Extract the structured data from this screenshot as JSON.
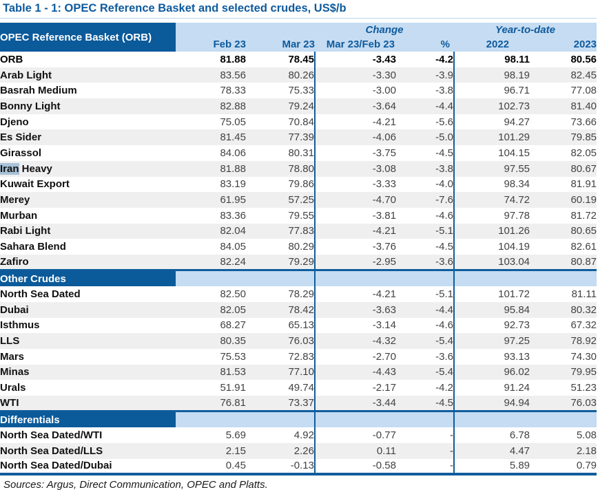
{
  "title": "Table 1 - 1: OPEC Reference Basket and selected crudes, US$/b",
  "footer": "Sources:  Argus, Direct Communication, OPEC and Platts.",
  "colors": {
    "dark_blue": "#0B5A9A",
    "light_blue": "#C5DCF2",
    "line_blue": "#0F5C9C",
    "band_gray": "#EFEFEF",
    "selection_blue": "#A8C2D8",
    "title_blue": "#0E5A9D"
  },
  "header": {
    "corner": "OPEC Reference Basket (ORB)",
    "groups": {
      "change": "Change",
      "ytd": "Year-to-date"
    },
    "columns": [
      "Feb 23",
      "Mar 23",
      "Mar 23/Feb 23",
      "%",
      "2022",
      "2023"
    ]
  },
  "table": {
    "sections": [
      {
        "header": null,
        "rows": [
          {
            "label": "ORB",
            "bold": true,
            "values": [
              "81.88",
              "78.45",
              "-3.43",
              "-4.2",
              "98.11",
              "80.56"
            ]
          },
          {
            "label": "Arab Light",
            "values": [
              "83.56",
              "80.26",
              "-3.30",
              "-3.9",
              "98.19",
              "82.45"
            ]
          },
          {
            "label": "Basrah Medium",
            "values": [
              "78.33",
              "75.33",
              "-3.00",
              "-3.8",
              "96.71",
              "77.08"
            ]
          },
          {
            "label": "Bonny Light",
            "values": [
              "82.88",
              "79.24",
              "-3.64",
              "-4.4",
              "102.73",
              "81.40"
            ]
          },
          {
            "label": "Djeno",
            "values": [
              "75.05",
              "70.84",
              "-4.21",
              "-5.6",
              "94.27",
              "73.66"
            ]
          },
          {
            "label": "Es Sider",
            "values": [
              "81.45",
              "77.39",
              "-4.06",
              "-5.0",
              "101.29",
              "79.85"
            ]
          },
          {
            "label": "Girassol",
            "values": [
              "84.06",
              "80.31",
              "-3.75",
              "-4.5",
              "104.15",
              "82.05"
            ]
          },
          {
            "label": "Iran Heavy",
            "highlight": "Iran",
            "values": [
              "81.88",
              "78.80",
              "-3.08",
              "-3.8",
              "97.55",
              "80.67"
            ]
          },
          {
            "label": "Kuwait Export",
            "values": [
              "83.19",
              "79.86",
              "-3.33",
              "-4.0",
              "98.34",
              "81.91"
            ]
          },
          {
            "label": "Merey",
            "values": [
              "61.95",
              "57.25",
              "-4.70",
              "-7.6",
              "74.72",
              "60.19"
            ]
          },
          {
            "label": "Murban",
            "values": [
              "83.36",
              "79.55",
              "-3.81",
              "-4.6",
              "97.78",
              "81.72"
            ]
          },
          {
            "label": "Rabi Light",
            "values": [
              "82.04",
              "77.83",
              "-4.21",
              "-5.1",
              "101.26",
              "80.65"
            ]
          },
          {
            "label": "Sahara Blend",
            "values": [
              "84.05",
              "80.29",
              "-3.76",
              "-4.5",
              "104.19",
              "82.61"
            ]
          },
          {
            "label": "Zafiro",
            "values": [
              "82.24",
              "79.29",
              "-2.95",
              "-3.6",
              "103.04",
              "80.87"
            ]
          }
        ]
      },
      {
        "header": "Other Crudes",
        "rows": [
          {
            "label": "North Sea Dated",
            "values": [
              "82.50",
              "78.29",
              "-4.21",
              "-5.1",
              "101.72",
              "81.11"
            ]
          },
          {
            "label": "Dubai",
            "values": [
              "82.05",
              "78.42",
              "-3.63",
              "-4.4",
              "95.84",
              "80.32"
            ]
          },
          {
            "label": "Isthmus",
            "values": [
              "68.27",
              "65.13",
              "-3.14",
              "-4.6",
              "92.73",
              "67.32"
            ]
          },
          {
            "label": "LLS",
            "values": [
              "80.35",
              "76.03",
              "-4.32",
              "-5.4",
              "97.25",
              "78.92"
            ]
          },
          {
            "label": "Mars",
            "values": [
              "75.53",
              "72.83",
              "-2.70",
              "-3.6",
              "93.13",
              "74.30"
            ]
          },
          {
            "label": "Minas",
            "values": [
              "81.53",
              "77.10",
              "-4.43",
              "-5.4",
              "96.02",
              "79.95"
            ]
          },
          {
            "label": "Urals",
            "values": [
              "51.91",
              "49.74",
              "-2.17",
              "-4.2",
              "91.24",
              "51.23"
            ]
          },
          {
            "label": "WTI",
            "values": [
              "76.81",
              "73.37",
              "-3.44",
              "-4.5",
              "94.94",
              "76.03"
            ]
          }
        ]
      },
      {
        "header": "Differentials",
        "rows": [
          {
            "label": "North Sea Dated/WTI",
            "values": [
              "5.69",
              "4.92",
              "-0.77",
              "-",
              "6.78",
              "5.08"
            ]
          },
          {
            "label": "North Sea Dated/LLS",
            "values": [
              "2.15",
              "2.26",
              "0.11",
              "-",
              "4.47",
              "2.18"
            ]
          },
          {
            "label": "North Sea Dated/Dubai",
            "values": [
              "0.45",
              "-0.13",
              "-0.58",
              "-",
              "5.89",
              "0.79"
            ]
          }
        ]
      }
    ]
  }
}
